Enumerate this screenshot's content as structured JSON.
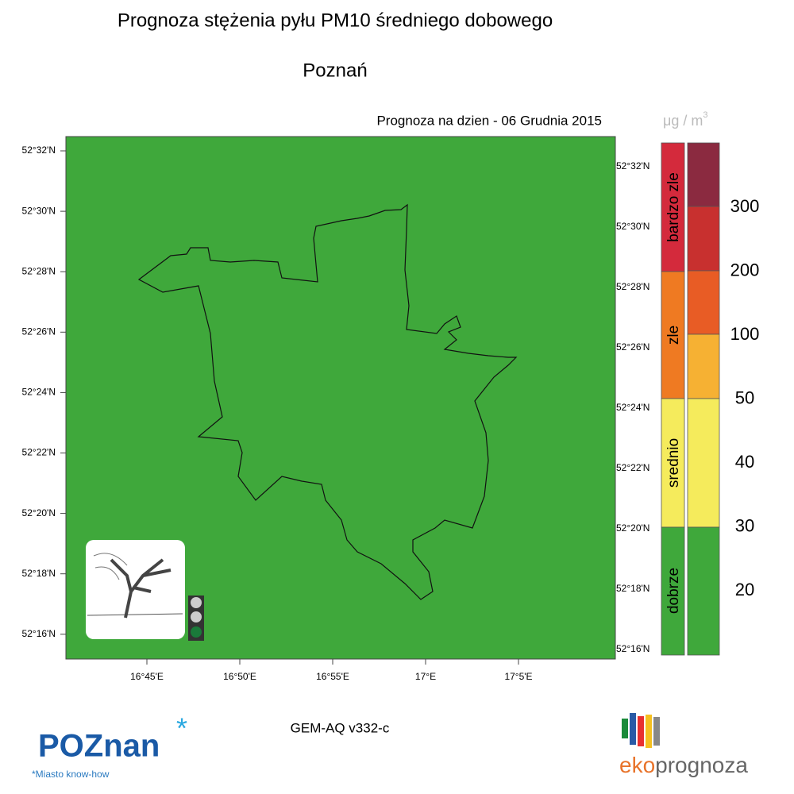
{
  "title": "Prognoza stężenia pyłu PM10 średniego dobowego",
  "subtitle": "Poznań",
  "forecast_date": "Prognoza na dzien -  06 Grudnia 2015",
  "unit": "μg / m",
  "unit_exponent": "3",
  "map": {
    "lat_labels_left": [
      "52°32'N",
      "52°30'N",
      "52°28'N",
      "52°26'N",
      "52°24'N",
      "52°22'N",
      "52°20'N",
      "52°18'N",
      "52°16'N"
    ],
    "lat_labels_right": [
      "52°32'N",
      "52°30'N",
      "52°28'N",
      "52°26'N",
      "52°24'N",
      "52°22'N",
      "52°20'N",
      "52°18'N",
      "52°16'N"
    ],
    "lon_labels": [
      "16°45'E",
      "16°50'E",
      "16°55'E",
      "17°E",
      "17°5'E"
    ]
  },
  "legend": {
    "categories": [
      "bardzo zle",
      "zle",
      "srednio",
      "dobrze"
    ],
    "thresholds": [
      "300",
      "200",
      "100",
      "50",
      "40",
      "30",
      "20"
    ]
  },
  "model": "GEM-AQ v332-c",
  "logo_left": {
    "name": "POZnan",
    "tagline": "*Miasto know-how"
  },
  "logo_right": {
    "prefix": "eko",
    "rest": "prognoza"
  }
}
